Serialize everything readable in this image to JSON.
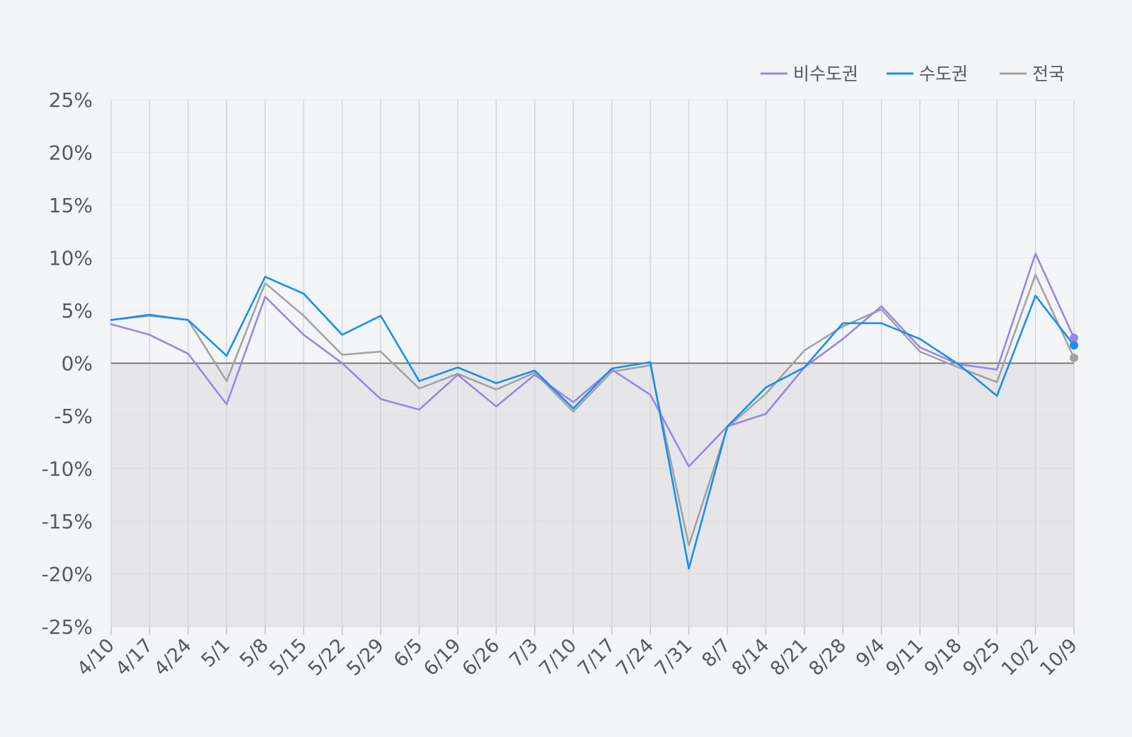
{
  "chart_data": {
    "type": "line",
    "categories": [
      "4/10",
      "4/17",
      "4/24",
      "5/1",
      "5/8",
      "5/15",
      "5/22",
      "5/29",
      "6/5",
      "6/19",
      "6/26",
      "7/3",
      "7/10",
      "7/17",
      "7/24",
      "7/31",
      "8/7",
      "8/14",
      "8/21",
      "8/28",
      "9/4",
      "9/11",
      "9/18",
      "9/25",
      "10/2",
      "10/9"
    ],
    "series": [
      {
        "name": "비수도권",
        "color": "#9b86e6",
        "values": [
          3.7,
          2.7,
          0.9,
          -3.9,
          6.3,
          2.7,
          0.0,
          -3.4,
          -4.4,
          -1.1,
          -4.1,
          -1.1,
          -3.7,
          -0.6,
          -3.0,
          -9.8,
          -6.0,
          -4.8,
          -0.4,
          2.3,
          5.4,
          1.5,
          -0.1,
          -0.6,
          10.4,
          2.4
        ]
      },
      {
        "name": "수도권",
        "color": "#1a8ff0",
        "values": [
          4.1,
          4.6,
          4.1,
          0.7,
          8.2,
          6.6,
          2.7,
          4.5,
          -1.7,
          -0.4,
          -1.9,
          -0.7,
          -4.3,
          -0.5,
          0.1,
          -19.5,
          -6.0,
          -2.3,
          -0.4,
          3.8,
          3.8,
          2.3,
          -0.1,
          -3.1,
          6.4,
          1.7
        ]
      },
      {
        "name": "전국",
        "color": "#a3a3a3",
        "values": [
          4.1,
          4.5,
          4.1,
          -1.7,
          7.6,
          4.5,
          0.8,
          1.1,
          -2.4,
          -1.0,
          -2.5,
          -0.9,
          -4.6,
          -0.8,
          -0.2,
          -17.3,
          -6.1,
          -2.9,
          1.2,
          3.5,
          5.1,
          1.1,
          -0.4,
          -1.8,
          8.4,
          0.5
        ]
      }
    ],
    "y_ticks": [
      "25%",
      "20%",
      "15%",
      "10%",
      "5%",
      "0%",
      "-5%",
      "-10%",
      "-15%",
      "-20%",
      "-25%"
    ],
    "ylim": [
      -25,
      25
    ],
    "legend_position": "top-right",
    "negative_region_fill": "#e6e6e8",
    "grid": true
  }
}
